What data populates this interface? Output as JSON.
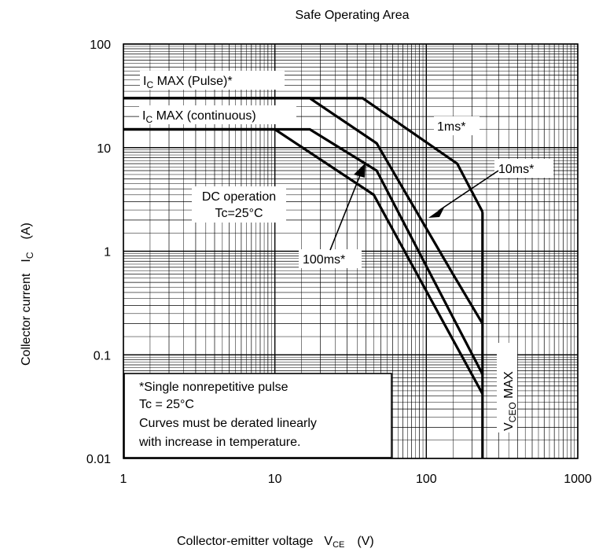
{
  "chart_data": {
    "type": "line",
    "title": "Safe Operating Area",
    "xlabel": "Collector-emitter voltage",
    "xlabel_symbol": "V",
    "xlabel_subscript": "CE",
    "xlabel_unit": "(V)",
    "ylabel": "Collector current",
    "ylabel_symbol": "I",
    "ylabel_subscript": "C",
    "ylabel_unit": "(A)",
    "xscale": "log",
    "yscale": "log",
    "xlim": [
      1,
      1000
    ],
    "ylim": [
      0.01,
      100
    ],
    "grid": true,
    "x_ticks": [
      "1",
      "10",
      "100",
      "1000"
    ],
    "y_ticks": [
      "0.01",
      "0.1",
      "1",
      "10",
      "100"
    ],
    "series": [
      {
        "name": "DC operation",
        "points": [
          [
            1,
            15
          ],
          [
            10,
            15
          ],
          [
            45,
            3.5
          ],
          [
            235,
            0.042
          ]
        ]
      },
      {
        "name": "100ms*",
        "points": [
          [
            1,
            15
          ],
          [
            17,
            15
          ],
          [
            47,
            6
          ],
          [
            235,
            0.065
          ]
        ]
      },
      {
        "name": "10ms*",
        "points": [
          [
            1,
            30
          ],
          [
            17,
            30
          ],
          [
            47,
            11
          ],
          [
            150,
            0.6
          ],
          [
            235,
            0.2
          ]
        ]
      },
      {
        "name": "1ms*",
        "points": [
          [
            1,
            30
          ],
          [
            38,
            30
          ],
          [
            160,
            7
          ],
          [
            235,
            2.4
          ]
        ]
      },
      {
        "name": "VCEO MAX",
        "points": [
          [
            235,
            2.4
          ],
          [
            235,
            0.01
          ]
        ]
      }
    ],
    "labels": {
      "ic_max_pulse": {
        "main": "I",
        "sub": "C",
        "rest": " MAX (Pulse)*"
      },
      "ic_max_cont": {
        "main": "I",
        "sub": "C",
        "rest": " MAX (continuous)"
      },
      "one_ms": "1ms*",
      "ten_ms": "10ms*",
      "hundred_ms": "100ms*",
      "dc_line1": "DC operation",
      "dc_line2": "Tc=25°C",
      "vceo": {
        "main": "V",
        "sub": "CEO",
        "rest": " MAX"
      }
    },
    "note": [
      "*Single nonrepetitive pulse",
      "Tc = 25°C",
      "Curves must be derated linearly",
      "with increase in temperature."
    ]
  }
}
